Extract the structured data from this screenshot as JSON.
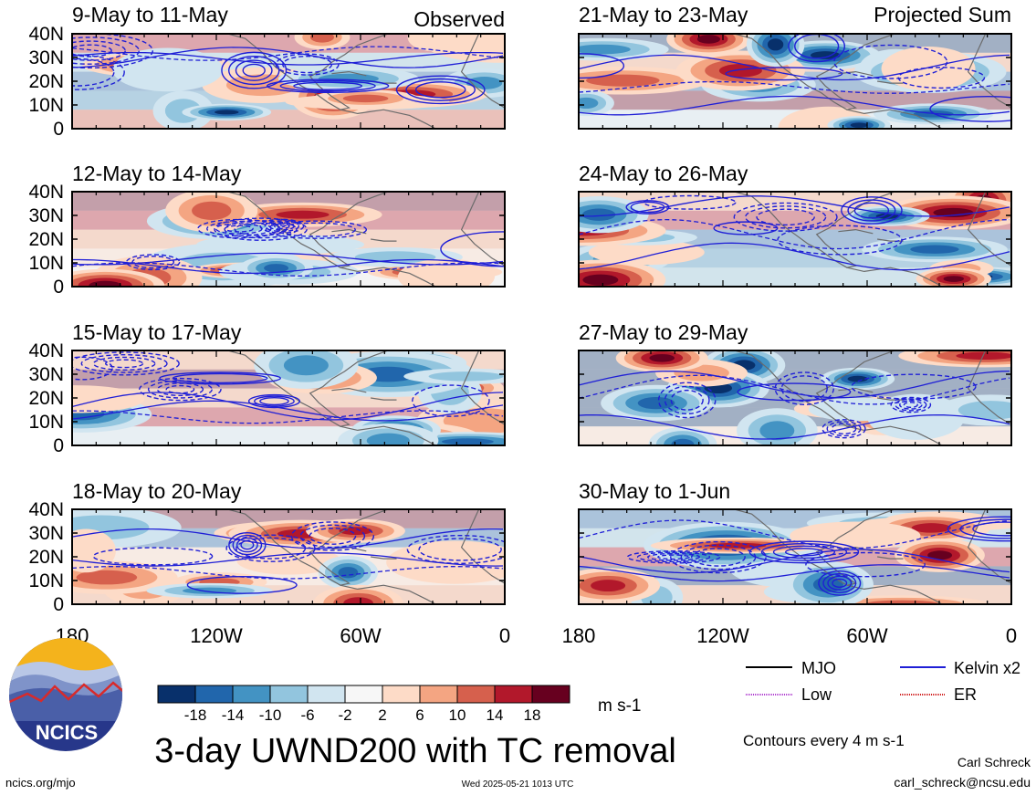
{
  "header": {
    "observed_label": "Observed",
    "projected_label": "Projected Sum"
  },
  "panels": [
    {
      "title": "9-May to 11-May",
      "group": "observed",
      "seed": 11
    },
    {
      "title": "12-May to 14-May",
      "group": "observed",
      "seed": 23
    },
    {
      "title": "15-May to 17-May",
      "group": "observed",
      "seed": 37
    },
    {
      "title": "18-May to 20-May",
      "group": "observed",
      "seed": 41
    },
    {
      "title": "21-May to 23-May",
      "group": "projected",
      "seed": 53
    },
    {
      "title": "24-May to 26-May",
      "group": "projected",
      "seed": 67
    },
    {
      "title": "27-May to 29-May",
      "group": "projected",
      "seed": 71
    },
    {
      "title": "30-May to 1-Jun",
      "group": "projected",
      "seed": 89
    }
  ],
  "axes": {
    "lat_ticks": [
      "40N",
      "30N",
      "20N",
      "10N",
      "0"
    ],
    "lon_ticks": [
      "180",
      "120W",
      "60W",
      "0"
    ]
  },
  "colorbar": {
    "colors": [
      "#08306b",
      "#2166ac",
      "#4393c3",
      "#92c5de",
      "#d1e5f0",
      "#f7f7f7",
      "#fddbc7",
      "#f4a582",
      "#d6604d",
      "#b2182b",
      "#67001f"
    ],
    "labels": [
      "-18",
      "-14",
      "-10",
      "-6",
      "-2",
      "2",
      "6",
      "10",
      "14",
      "18"
    ],
    "units": "m s-1"
  },
  "title": "3-day UWND200 with TC removal",
  "legend": {
    "items": [
      {
        "label": "MJO",
        "color": "#000000"
      },
      {
        "label": "Kelvin x2",
        "color": "#1f1fd6"
      },
      {
        "label": "Low",
        "color": "#b040d0"
      },
      {
        "label": "ER",
        "color": "#d02020"
      }
    ],
    "note": "Contours every 4 m s-1"
  },
  "logo": {
    "text": "NCICS"
  },
  "footer": {
    "url": "ncics.org/mjo",
    "timestamp": "Wed 2025-05-21 1013 UTC",
    "author": "Carl Schreck",
    "email": "carl_schreck@ncsu.edu"
  }
}
